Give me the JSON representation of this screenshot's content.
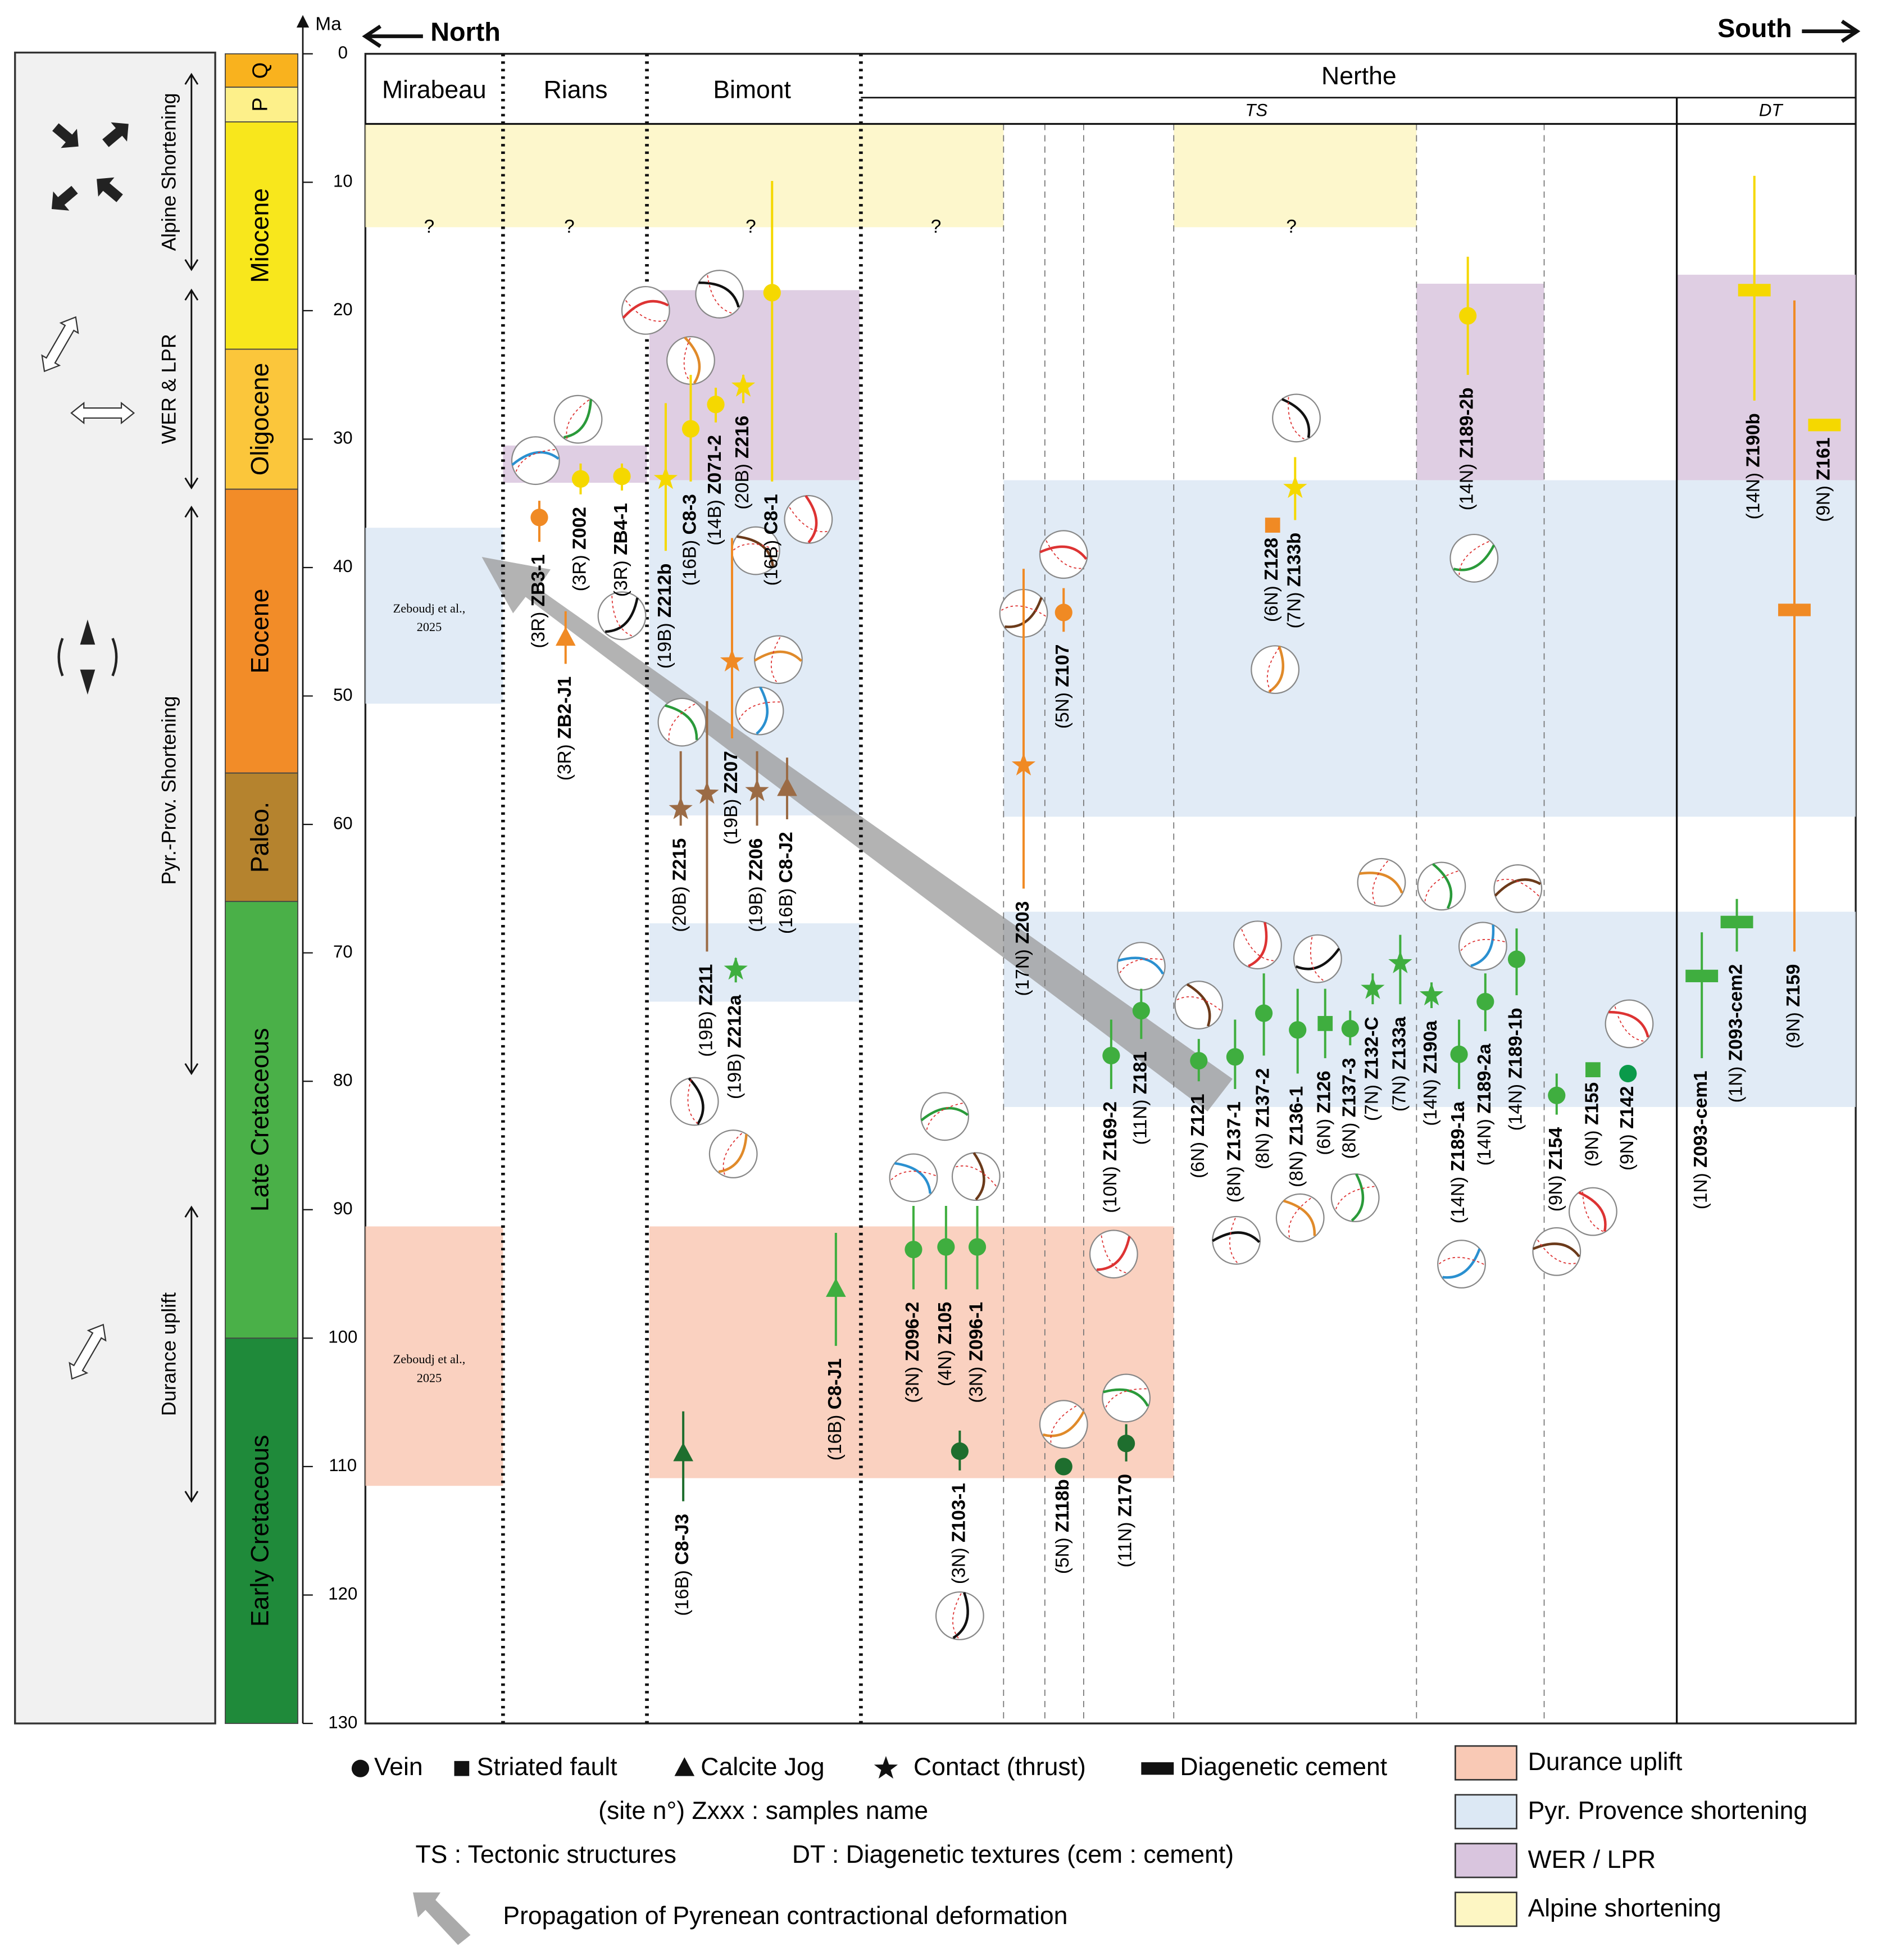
{
  "axis": {
    "label": "Ma",
    "ylim": [
      0,
      130
    ],
    "yticks": [
      0,
      10,
      20,
      30,
      40,
      50,
      60,
      70,
      80,
      90,
      100,
      110,
      120,
      130
    ]
  },
  "header": {
    "north": "North",
    "south": "South"
  },
  "periods": [
    {
      "name": "Q",
      "start": 0,
      "end": 2.6,
      "color": "#f9b21e"
    },
    {
      "name": "P",
      "start": 2.6,
      "end": 5.3,
      "color": "#fdf08a"
    },
    {
      "name": "Miocene",
      "start": 5.3,
      "end": 23,
      "color": "#f8e71c"
    },
    {
      "name": "Oligocene",
      "start": 23,
      "end": 33.9,
      "color": "#fbc63b"
    },
    {
      "name": "Eocene",
      "start": 33.9,
      "end": 56,
      "color": "#f28c28"
    },
    {
      "name": "Paleo.",
      "start": 56,
      "end": 66,
      "color": "#b5832e"
    },
    {
      "name": "Late Cretaceous",
      "start": 66,
      "end": 100,
      "color": "#4ab048"
    },
    {
      "name": "Early Cretaceous",
      "start": 100,
      "end": 130,
      "color": "#1f8a3a"
    }
  ],
  "events": [
    {
      "label": "Alpine Shortening",
      "start": 1.6,
      "end": 16.8
    },
    {
      "label": "WER & LPR",
      "start": 18.4,
      "end": 33.8
    },
    {
      "label": "Pyr.-Prov. Shortening",
      "start": 35.3,
      "end": 79.4
    },
    {
      "label": "Durance uplift",
      "start": 89.8,
      "end": 112.7
    }
  ],
  "columns": {
    "mirabeau": "Mirabeau",
    "rians": "Rians",
    "bimont": "Bimont",
    "nerthe": "Nerthe",
    "ts": "TS",
    "dt": "DT"
  },
  "bands": [
    {
      "kind": "alpine",
      "ages": [
        5.5,
        13.5
      ]
    },
    {
      "kind": "alpine",
      "ages": [
        5.5,
        13.5
      ]
    },
    {
      "kind": "wer",
      "ages": [
        30.5,
        33.4
      ]
    },
    {
      "kind": "wer",
      "ages": [
        18.4,
        33.2
      ]
    },
    {
      "kind": "wer",
      "ages": [
        17.9,
        33.2
      ]
    },
    {
      "kind": "wer",
      "ages": [
        17.2,
        33.2
      ]
    },
    {
      "kind": "pyr",
      "ages": [
        36.9,
        50.6
      ]
    },
    {
      "kind": "pyr",
      "ages": [
        33.2,
        59.3
      ]
    },
    {
      "kind": "pyr",
      "ages": [
        33.2,
        59.4
      ]
    },
    {
      "kind": "pyr",
      "ages": [
        67.7,
        73.8
      ]
    },
    {
      "kind": "pyr",
      "ages": [
        66.8,
        82
      ]
    },
    {
      "kind": "durance",
      "ages": [
        91.3,
        111.5
      ]
    },
    {
      "kind": "durance",
      "ages": [
        91.3,
        110.9
      ]
    }
  ],
  "question_marks": [
    "?",
    "?",
    "?",
    "?",
    "?"
  ],
  "notes": [
    [
      "Zeboudj et al.,",
      "2025"
    ],
    [
      "Zeboudj et al.,",
      "2025"
    ]
  ],
  "samples": [
    {
      "site": "(3R)",
      "name": "ZB3-1",
      "type": "vein",
      "color": "#f08a24",
      "age": 36.1,
      "range": [
        34.8,
        38
      ]
    },
    {
      "site": "(3R)",
      "name": "ZB2-J1",
      "type": "jog",
      "color": "#f08a24",
      "age": 45.5,
      "range": [
        43.4,
        47.5
      ]
    },
    {
      "site": "(3R)",
      "name": "Z002",
      "type": "vein",
      "color": "#f5d800",
      "age": 33.1,
      "range": [
        31.9,
        34.3
      ]
    },
    {
      "site": "(3R)",
      "name": "ZB4-1",
      "type": "vein",
      "color": "#f5d800",
      "age": 32.9,
      "range": [
        31.9,
        34
      ]
    },
    {
      "site": "(19B)",
      "name": "Z212b",
      "type": "star",
      "color": "#f5d800",
      "age": 33.1,
      "range": [
        27.2,
        38.7
      ]
    },
    {
      "site": "(16B)",
      "name": "C8-3",
      "type": "vein",
      "color": "#f5d800",
      "age": 29.2,
      "range": [
        25,
        33.3
      ]
    },
    {
      "site": "(14B)",
      "name": "Z071-2",
      "type": "vein",
      "color": "#f5d800",
      "age": 27.3,
      "range": [
        26,
        28.7
      ]
    },
    {
      "site": "(20B)",
      "name": "Z216",
      "type": "star",
      "color": "#f5d800",
      "age": 25.9,
      "range": [
        25,
        27.2
      ]
    },
    {
      "site": "(16B)",
      "name": "C8-1",
      "type": "vein",
      "color": "#f5d800",
      "age": 18.6,
      "range": [
        9.9,
        33.3
      ]
    },
    {
      "site": "(19B)",
      "name": "Z207",
      "type": "star",
      "color": "#f08a24",
      "age": 47.3,
      "range": [
        37.7,
        53.3
      ]
    },
    {
      "site": "(20B)",
      "name": "Z215",
      "type": "star",
      "color": "#9b6b45",
      "age": 58.8,
      "range": [
        54.3,
        60.1
      ]
    },
    {
      "site": "(19B)",
      "name": "Z211",
      "type": "star",
      "color": "#9b6b45",
      "age": 57.6,
      "range": [
        50.4,
        69.9
      ]
    },
    {
      "site": "(19B)",
      "name": "Z206",
      "type": "star",
      "color": "#9b6b45",
      "age": 57.4,
      "range": [
        54.3,
        60.1
      ]
    },
    {
      "site": "(16B)",
      "name": "C8-J2",
      "type": "jog",
      "color": "#9b6b45",
      "age": 57.2,
      "range": [
        54.8,
        59.6
      ]
    },
    {
      "site": "(19B)",
      "name": "Z212a",
      "type": "star",
      "color": "#3fae3f",
      "age": 71.3,
      "range": [
        70.4,
        72.3
      ]
    },
    {
      "site": "(16B)",
      "name": "C8-J1",
      "type": "jog",
      "color": "#3fae3f",
      "age": 96.2,
      "range": [
        91.8,
        100.6
      ]
    },
    {
      "site": "(16B)",
      "name": "C8-J3",
      "type": "jog",
      "color": "#1e6e2e",
      "age": 109,
      "range": [
        105.7,
        112.7
      ]
    },
    {
      "site": "(3N)",
      "name": "Z096-2",
      "type": "vein",
      "color": "#3fae3f",
      "age": 93.1,
      "range": [
        89.7,
        96.2
      ]
    },
    {
      "site": "(4N)",
      "name": "Z105",
      "type": "vein",
      "color": "#3fae3f",
      "age": 92.9,
      "range": [
        89.7,
        96.2
      ]
    },
    {
      "site": "(3N)",
      "name": "Z096-1",
      "type": "vein",
      "color": "#3fae3f",
      "age": 92.9,
      "range": [
        89.7,
        96.2
      ]
    },
    {
      "site": "(3N)",
      "name": "Z103-1",
      "type": "vein",
      "color": "#1e6e2e",
      "age": 108.8,
      "range": [
        107.2,
        110.3
      ]
    },
    {
      "site": "(5N)",
      "name": "Z118b",
      "type": "vein",
      "color": "#1e6e2e",
      "age": 110
    },
    {
      "site": "(11N)",
      "name": "Z170",
      "type": "vein",
      "color": "#1e6e2e",
      "age": 108.2,
      "range": [
        106.7,
        109.6
      ]
    },
    {
      "site": "(17N)",
      "name": "Z203",
      "type": "star",
      "color": "#f08a24",
      "age": 55.4,
      "range": [
        40.1,
        65
      ]
    },
    {
      "site": "(5N)",
      "name": "Z107",
      "type": "vein",
      "color": "#f08a24",
      "age": 43.5,
      "range": [
        41.6,
        45
      ]
    },
    {
      "site": "(10N)",
      "name": "Z169-2",
      "type": "vein",
      "color": "#3fae3f",
      "age": 78,
      "range": [
        75.2,
        80.6
      ]
    },
    {
      "site": "(11N)",
      "name": "Z181",
      "type": "vein",
      "color": "#3fae3f",
      "age": 74.5,
      "range": [
        72.8,
        76.7
      ]
    },
    {
      "site": "(6N)",
      "name": "Z121",
      "type": "vein",
      "color": "#3fae3f",
      "age": 78.4,
      "range": [
        76.7,
        80
      ]
    },
    {
      "site": "(8N)",
      "name": "Z137-1",
      "type": "vein",
      "color": "#3fae3f",
      "age": 78.1,
      "range": [
        75.2,
        80.6
      ]
    },
    {
      "site": "(8N)",
      "name": "Z137-2",
      "type": "vein",
      "color": "#3fae3f",
      "age": 74.7,
      "range": [
        71.6,
        78
      ]
    },
    {
      "site": "(8N)",
      "name": "Z136-1",
      "type": "vein",
      "color": "#3fae3f",
      "age": 76,
      "range": [
        72.8,
        79.4
      ]
    },
    {
      "site": "(6N)",
      "name": "Z126",
      "type": "fault",
      "color": "#3fae3f",
      "age": 75.5,
      "range": [
        72.8,
        78.2
      ]
    },
    {
      "site": "(8N)",
      "name": "Z137-3",
      "type": "vein",
      "color": "#3fae3f",
      "age": 75.9,
      "range": [
        74.5,
        77.2
      ]
    },
    {
      "site": "(7N)",
      "name": "Z132-C",
      "type": "star",
      "color": "#3fae3f",
      "age": 72.8,
      "range": [
        71.6,
        74
      ]
    },
    {
      "site": "(7N)",
      "name": "Z133a",
      "type": "star",
      "color": "#3fae3f",
      "age": 70.8,
      "range": [
        68.6,
        74
      ]
    },
    {
      "site": "(14N)",
      "name": "Z190a",
      "type": "star",
      "color": "#3fae3f",
      "age": 73.3,
      "range": [
        72.3,
        74.3
      ]
    },
    {
      "site": "(14N)",
      "name": "Z189-1a",
      "type": "vein",
      "color": "#3fae3f",
      "age": 77.9,
      "range": [
        75.2,
        80.6
      ]
    },
    {
      "site": "(14N)",
      "name": "Z189-2a",
      "type": "vein",
      "color": "#3fae3f",
      "age": 73.8,
      "range": [
        71.6,
        76.1
      ]
    },
    {
      "site": "(14N)",
      "name": "Z189-1b",
      "type": "vein",
      "color": "#3fae3f",
      "age": 70.5,
      "range": [
        68.1,
        73.3
      ]
    },
    {
      "site": "(9N)",
      "name": "Z154",
      "type": "vein",
      "color": "#3fae3f",
      "age": 81.1,
      "range": [
        79.4,
        82.6
      ]
    },
    {
      "site": "(9N)",
      "name": "Z155",
      "type": "fault",
      "color": "#3fae3f",
      "age": 79.1
    },
    {
      "site": "(9N)",
      "name": "Z142",
      "type": "vein",
      "color": "#0a9a4a",
      "age": 79.4
    },
    {
      "site": "(6N)",
      "name": "Z128",
      "type": "fault",
      "color": "#f08a24",
      "age": 36.7
    },
    {
      "site": "(7N)",
      "name": "Z133b",
      "type": "star",
      "color": "#f5d800",
      "age": 33.8,
      "range": [
        31.4,
        36.3
      ]
    },
    {
      "site": "(14N)",
      "name": "Z189-2b",
      "type": "vein",
      "color": "#f5d800",
      "age": 20.4,
      "range": [
        15.8,
        25
      ]
    },
    {
      "site": "(14N)",
      "name": "Z190b",
      "type": "cement",
      "color": "#f5d800",
      "age": 18.4,
      "range": [
        9.5,
        27
      ]
    },
    {
      "site": "(9N)",
      "name": "Z161",
      "type": "cement",
      "color": "#f5d800",
      "age": 28.9
    },
    {
      "site": "(9N)",
      "name": "Z159",
      "type": "cement",
      "color": "#f08a24",
      "age": 43.3,
      "range": [
        19.2,
        69.9
      ]
    },
    {
      "site": "(1N)",
      "name": "Z093-cem1",
      "type": "cement",
      "color": "#3fae3f",
      "age": 71.8,
      "range": [
        68.4,
        78.2
      ]
    },
    {
      "site": "(1N)",
      "name": "Z093-cem2",
      "type": "cement",
      "color": "#3fae3f",
      "age": 67.6,
      "range": [
        65.8,
        69.9
      ]
    }
  ],
  "legend": {
    "symbols": [
      {
        "type": "vein",
        "label": "Vein"
      },
      {
        "type": "fault",
        "label": "Striated fault"
      },
      {
        "type": "jog",
        "label": "Calcite Jog"
      },
      {
        "type": "star",
        "label": "Contact (thrust)"
      },
      {
        "type": "cement",
        "label": "Diagenetic cement"
      }
    ],
    "sample_note": "(site n°) Zxxx : samples name",
    "ts_note": "TS : Tectonic structures",
    "dt_note": "DT : Diagenetic textures (cem : cement)",
    "arrow_note": "Propagation of Pyrenean contractional deformation",
    "boxes": [
      {
        "label": "Durance uplift",
        "color": "#f9c9b5"
      },
      {
        "label": "Pyr. Provence shortening",
        "color": "#dce8f4"
      },
      {
        "label": "WER / LPR",
        "color": "#d9c5de"
      },
      {
        "label": "Alpine shortening",
        "color": "#fdf6c3"
      }
    ]
  }
}
